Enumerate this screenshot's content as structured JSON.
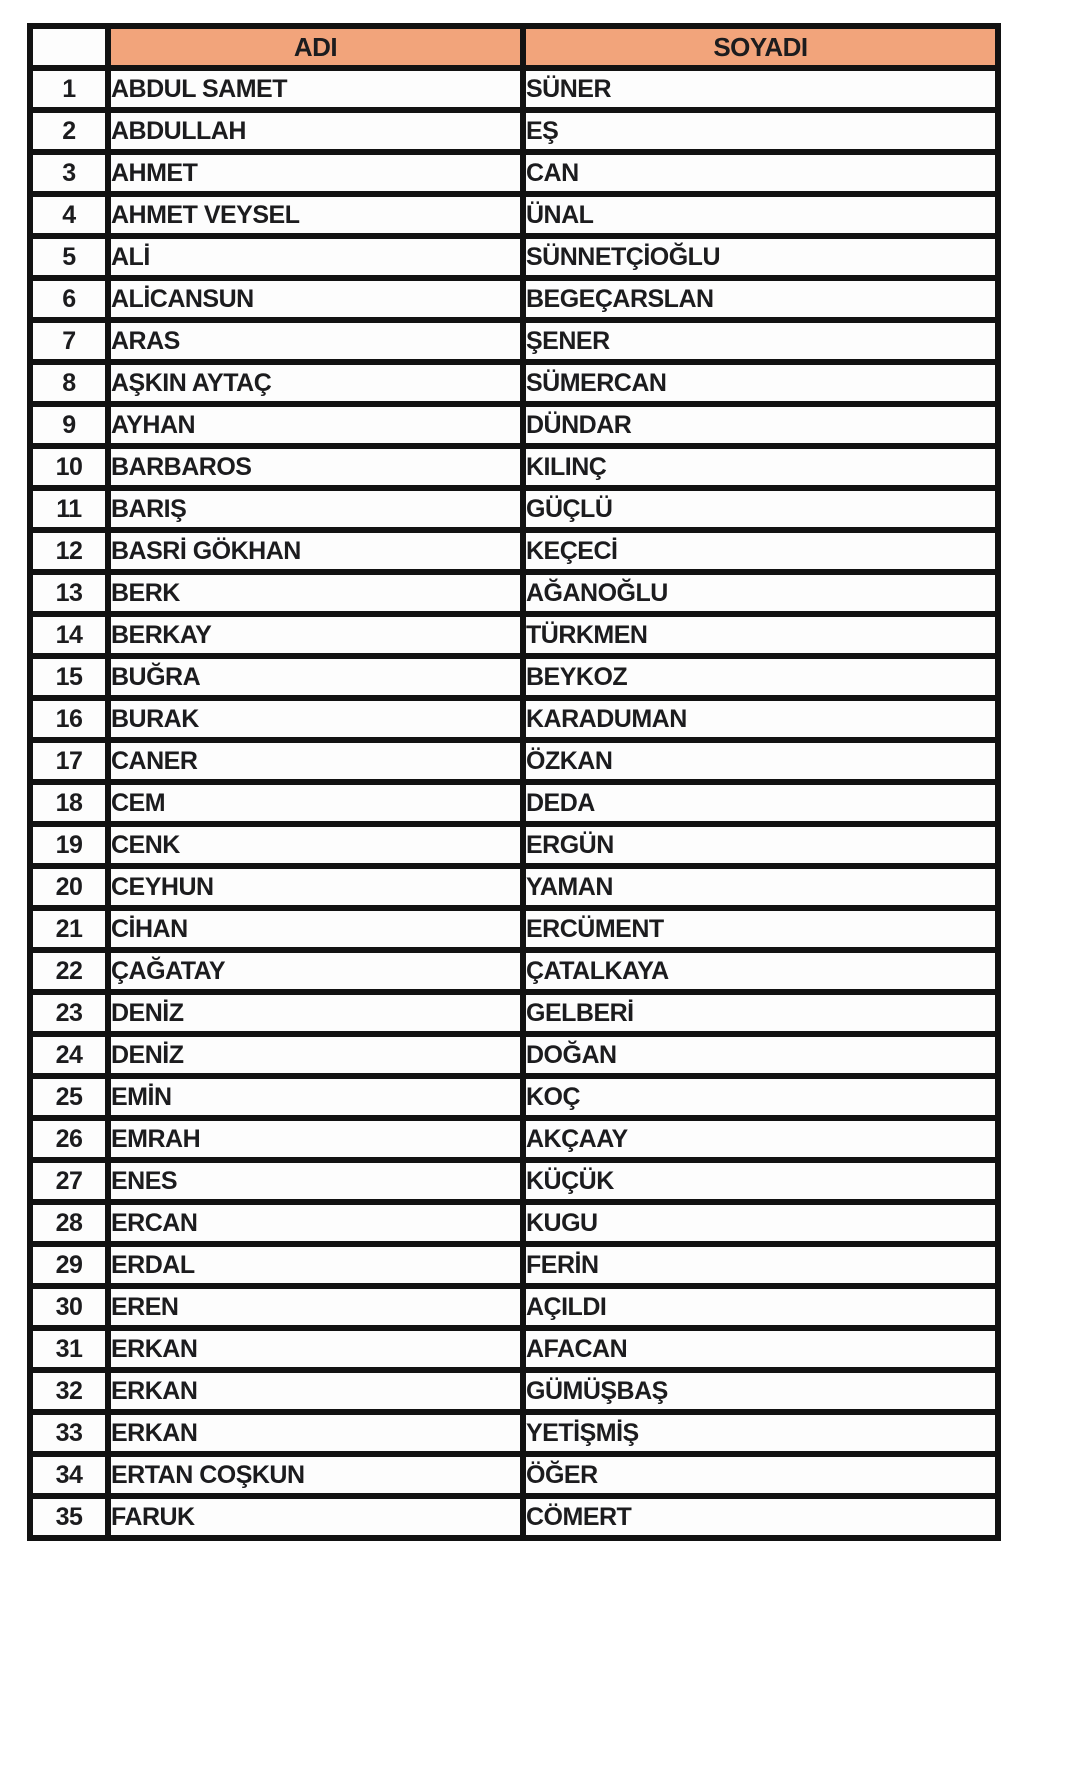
{
  "table": {
    "headers": {
      "corner": "",
      "adi": "ADI",
      "soyadi": "SOYADI"
    },
    "colors": {
      "header_bg": "#F2A47B",
      "border": "#121212",
      "row_bg": "#FDFDFD",
      "text": "#1C1C1E"
    },
    "rows": [
      {
        "no": "1",
        "adi": "ABDUL SAMET",
        "soyadi": "SÜNER"
      },
      {
        "no": "2",
        "adi": "ABDULLAH",
        "soyadi": "EŞ"
      },
      {
        "no": "3",
        "adi": "AHMET",
        "soyadi": "CAN"
      },
      {
        "no": "4",
        "adi": "AHMET VEYSEL",
        "soyadi": "ÜNAL"
      },
      {
        "no": "5",
        "adi": "ALİ",
        "soyadi": "SÜNNETÇİOĞLU"
      },
      {
        "no": "6",
        "adi": "ALİCANSUN",
        "soyadi": "BEGEÇARSLAN"
      },
      {
        "no": "7",
        "adi": "ARAS",
        "soyadi": "ŞENER"
      },
      {
        "no": "8",
        "adi": "AŞKIN AYTAÇ",
        "soyadi": "SÜMERCAN"
      },
      {
        "no": "9",
        "adi": "AYHAN",
        "soyadi": "DÜNDAR"
      },
      {
        "no": "10",
        "adi": "BARBAROS",
        "soyadi": "KILINÇ"
      },
      {
        "no": "11",
        "adi": "BARIŞ",
        "soyadi": "GÜÇLÜ"
      },
      {
        "no": "12",
        "adi": "BASRİ GÖKHAN",
        "soyadi": "KEÇECİ"
      },
      {
        "no": "13",
        "adi": "BERK",
        "soyadi": "AĞANOĞLU"
      },
      {
        "no": "14",
        "adi": "BERKAY",
        "soyadi": "TÜRKMEN"
      },
      {
        "no": "15",
        "adi": "BUĞRA",
        "soyadi": "BEYKOZ"
      },
      {
        "no": "16",
        "adi": "BURAK",
        "soyadi": "KARADUMAN"
      },
      {
        "no": "17",
        "adi": "CANER",
        "soyadi": "ÖZKAN"
      },
      {
        "no": "18",
        "adi": "CEM",
        "soyadi": "DEDA"
      },
      {
        "no": "19",
        "adi": "CENK",
        "soyadi": "ERGÜN"
      },
      {
        "no": "20",
        "adi": "CEYHUN",
        "soyadi": "YAMAN"
      },
      {
        "no": "21",
        "adi": "CİHAN",
        "soyadi": "ERCÜMENT"
      },
      {
        "no": "22",
        "adi": "ÇAĞATAY",
        "soyadi": "ÇATALKAYA"
      },
      {
        "no": "23",
        "adi": "DENİZ",
        "soyadi": "GELBERİ"
      },
      {
        "no": "24",
        "adi": "DENİZ",
        "soyadi": "DOĞAN"
      },
      {
        "no": "25",
        "adi": "EMİN",
        "soyadi": "KOÇ"
      },
      {
        "no": "26",
        "adi": "EMRAH",
        "soyadi": "AKÇAAY"
      },
      {
        "no": "27",
        "adi": "ENES",
        "soyadi": "KÜÇÜK"
      },
      {
        "no": "28",
        "adi": "ERCAN",
        "soyadi": "KUGU"
      },
      {
        "no": "29",
        "adi": "ERDAL",
        "soyadi": "FERİN"
      },
      {
        "no": "30",
        "adi": "EREN",
        "soyadi": "AÇILDI"
      },
      {
        "no": "31",
        "adi": "ERKAN",
        "soyadi": "AFACAN"
      },
      {
        "no": "32",
        "adi": "ERKAN",
        "soyadi": "GÜMÜŞBAŞ"
      },
      {
        "no": "33",
        "adi": "ERKAN",
        "soyadi": "YETİŞMİŞ"
      },
      {
        "no": "34",
        "adi": "ERTAN COŞKUN",
        "soyadi": "ÖĞER"
      },
      {
        "no": "35",
        "adi": "FARUK",
        "soyadi": "CÖMERT"
      }
    ]
  }
}
